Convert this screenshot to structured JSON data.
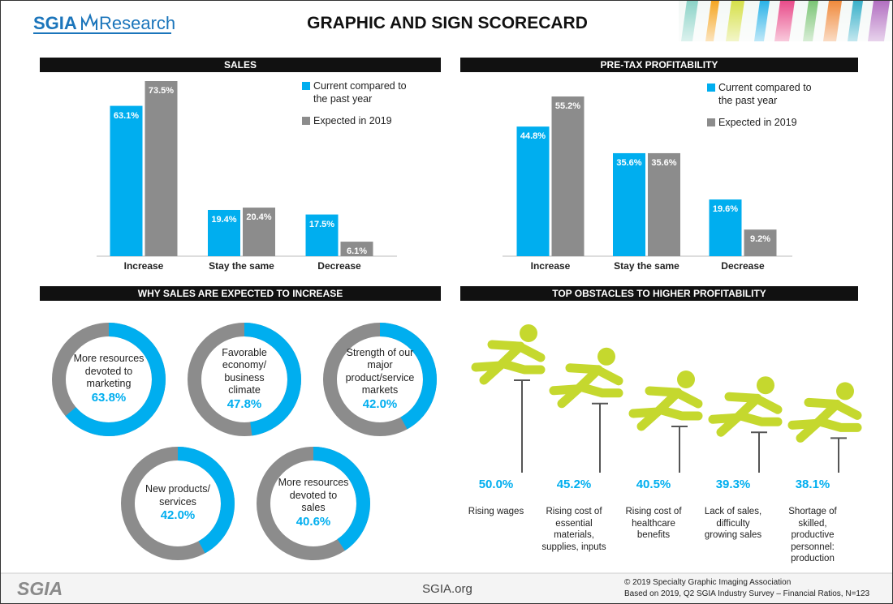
{
  "header": {
    "logo": "SGIA",
    "logo_text": "Research",
    "title": "GRAPHIC AND SIGN SCORECARD"
  },
  "chart_data": [
    {
      "type": "bar",
      "title": "SALES",
      "categories": [
        "Increase",
        "Stay the same",
        "Decrease"
      ],
      "series": [
        {
          "name": "Current compared to the past year",
          "color": "#00aeef",
          "values": [
            63.1,
            19.4,
            17.5
          ],
          "value_labels": [
            "63.1%",
            "19.4%",
            "17.5%"
          ]
        },
        {
          "name": "Expected in 2019",
          "color": "#8c8c8c",
          "values": [
            73.5,
            20.4,
            6.1
          ],
          "value_labels": [
            "73.5%",
            "20.4%",
            "6.1%"
          ]
        }
      ]
    },
    {
      "type": "bar",
      "title": "PRE-TAX PROFITABILITY",
      "categories": [
        "Increase",
        "Stay the same",
        "Decrease"
      ],
      "series": [
        {
          "name": "Current compared to the past year",
          "color": "#00aeef",
          "values": [
            44.8,
            35.6,
            19.6
          ],
          "value_labels": [
            "44.8%",
            "35.6%",
            "19.6%"
          ]
        },
        {
          "name": "Expected in 2019",
          "color": "#8c8c8c",
          "values": [
            55.2,
            35.6,
            9.2
          ],
          "value_labels": [
            "55.2%",
            "35.6%",
            "9.2%"
          ]
        }
      ]
    },
    {
      "type": "donut",
      "title": "WHY SALES ARE EXPECTED TO INCREASE",
      "color": "#00aeef",
      "track_color": "#8c8c8c",
      "categories": [
        "More resources devoted to marketing",
        "Favorable economy/ business climate",
        "Strength of our major product/service markets",
        "New products/ services",
        "More resources devoted to sales"
      ],
      "values": [
        63.8,
        47.8,
        42.0,
        42.0,
        40.6
      ],
      "value_labels": [
        "63.8%",
        "47.8%",
        "42.0%",
        "42.0%",
        "40.6%"
      ]
    },
    {
      "type": "hurdle",
      "title": "TOP OBSTACLES TO HIGHER PROFITABILITY",
      "color": "#c5d82e",
      "categories": [
        "Rising wages",
        "Rising cost of essential materials, supplies, inputs",
        "Rising cost of healthcare benefits",
        "Lack of sales, difficulty growing sales",
        "Shortage of skilled, productive personnel: production"
      ],
      "values": [
        50.0,
        45.2,
        40.5,
        39.3,
        38.1
      ],
      "value_labels": [
        "50.0%",
        "45.2%",
        "40.5%",
        "39.3%",
        "38.1%"
      ]
    }
  ],
  "footer": {
    "logo": "SGIA",
    "website": "SGIA.org",
    "copyright": "© 2019 Specialty Graphic Imaging Association",
    "source": "Based on 2019, Q2 SGIA Industry Survey – Financial Ratios, N=123"
  }
}
